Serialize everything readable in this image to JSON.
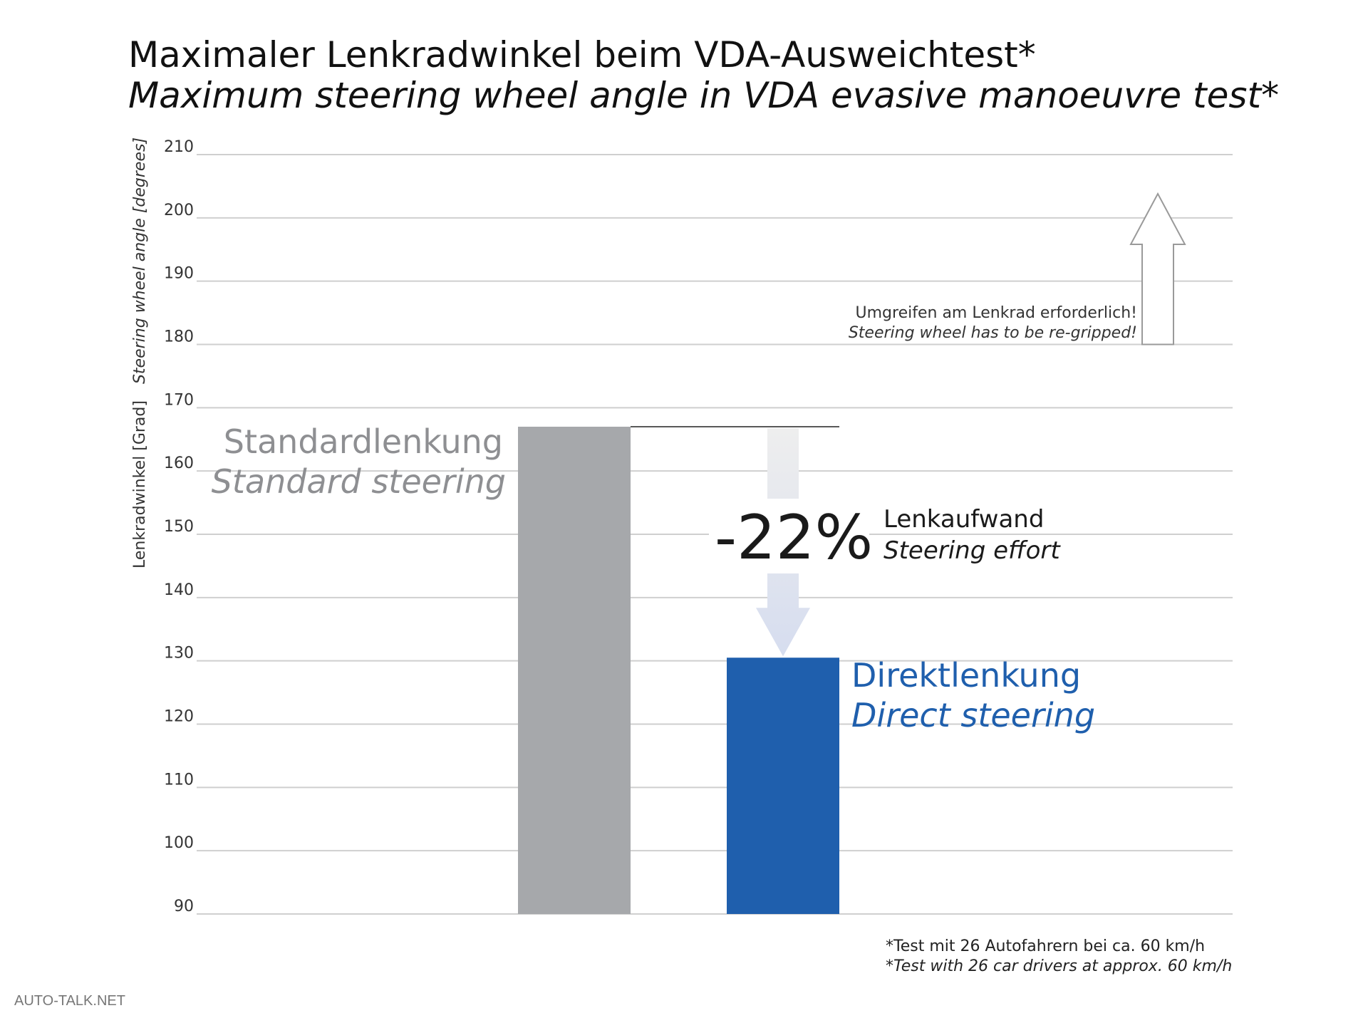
{
  "header": {
    "title_de": "Maximaler Lenkradwinkel beim VDA-Ausweichtest*",
    "title_en": "Maximum steering wheel angle in VDA evasive manoeuvre test*"
  },
  "chart_data": {
    "type": "bar",
    "title": "Maximaler Lenkradwinkel beim VDA-Ausweichtest* / Maximum steering wheel angle in VDA evasive manoeuvre test*",
    "ylabel_de": "Lenkradwinkel [Grad]",
    "ylabel_en": "Steering wheel angle [degrees]",
    "ylim": [
      90,
      210
    ],
    "yticks": [
      90,
      100,
      110,
      120,
      130,
      140,
      150,
      160,
      170,
      180,
      190,
      200,
      210
    ],
    "grid": true,
    "categories": [
      {
        "label_de": "Standardlenkung",
        "label_en": "Standard steering",
        "value": 167,
        "color": "#a6a8ab"
      },
      {
        "label_de": "Direktlenkung",
        "label_en": "Direct steering",
        "value": 130.5,
        "color": "#1f5fad"
      }
    ],
    "annotations": {
      "reduction": {
        "value_text": "-22%",
        "label_de": "Lenkaufwand",
        "label_en": "Steering effort"
      },
      "regrip": {
        "threshold": 180,
        "label_de": "Umgreifen am Lenkrad erforderlich!",
        "label_en": "Steering wheel has to be re-gripped!"
      }
    }
  },
  "footnote": {
    "de": "*Test mit 26 Autofahrern bei ca. 60 km/h",
    "en": "*Test with 26 car drivers at approx. 60 km/h"
  },
  "watermark": "AUTO-TALK.NET",
  "colors": {
    "grid": "#cfcfcf",
    "standard_label": "#8e8f92",
    "direct_label": "#1f5fad",
    "arrow": "#dbe1ee"
  }
}
